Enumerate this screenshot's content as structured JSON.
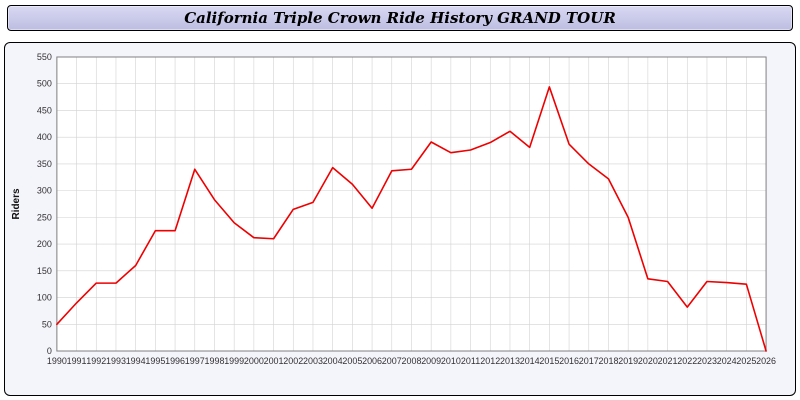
{
  "header": {
    "title": "California Triple Crown Ride History GRAND TOUR"
  },
  "colors": {
    "header-bg-top": "#d9d9f3",
    "header-bg-bottom": "#bdbde2",
    "panel-bg": "#f4f4fb",
    "plot-bg": "#ffffff"
  },
  "chart_data": {
    "type": "line",
    "title": "California Triple Crown Ride History GRAND TOUR",
    "xlabel": "",
    "ylabel": "Riders",
    "ylim": [
      0,
      550
    ],
    "ytick_step": 50,
    "grid": true,
    "legend": "none",
    "grid_color": "#d2d2d2",
    "frame_color": "#808080",
    "line_color": "#ee0000",
    "x": [
      "1990",
      "1991",
      "1992",
      "1993",
      "1994",
      "1995",
      "1996",
      "1997",
      "1998",
      "1999",
      "2000",
      "2001",
      "2002",
      "2003",
      "2004",
      "2005",
      "2006",
      "2007",
      "2008",
      "2009",
      "2010",
      "2011",
      "2012",
      "2013",
      "2014",
      "2015",
      "2016",
      "2017",
      "2018",
      "2019",
      "2020",
      "2021",
      "2022",
      "2023",
      "2024",
      "2025",
      "2026"
    ],
    "series": [
      {
        "name": "Riders",
        "values": [
          50,
          90,
          127,
          127,
          160,
          225,
          225,
          340,
          283,
          240,
          212,
          210,
          265,
          278,
          343,
          312,
          267,
          337,
          340,
          391,
          371,
          376,
          390,
          411,
          381,
          494,
          387,
          350,
          322,
          250,
          135,
          130,
          82,
          130,
          128,
          125,
          0
        ]
      }
    ]
  }
}
